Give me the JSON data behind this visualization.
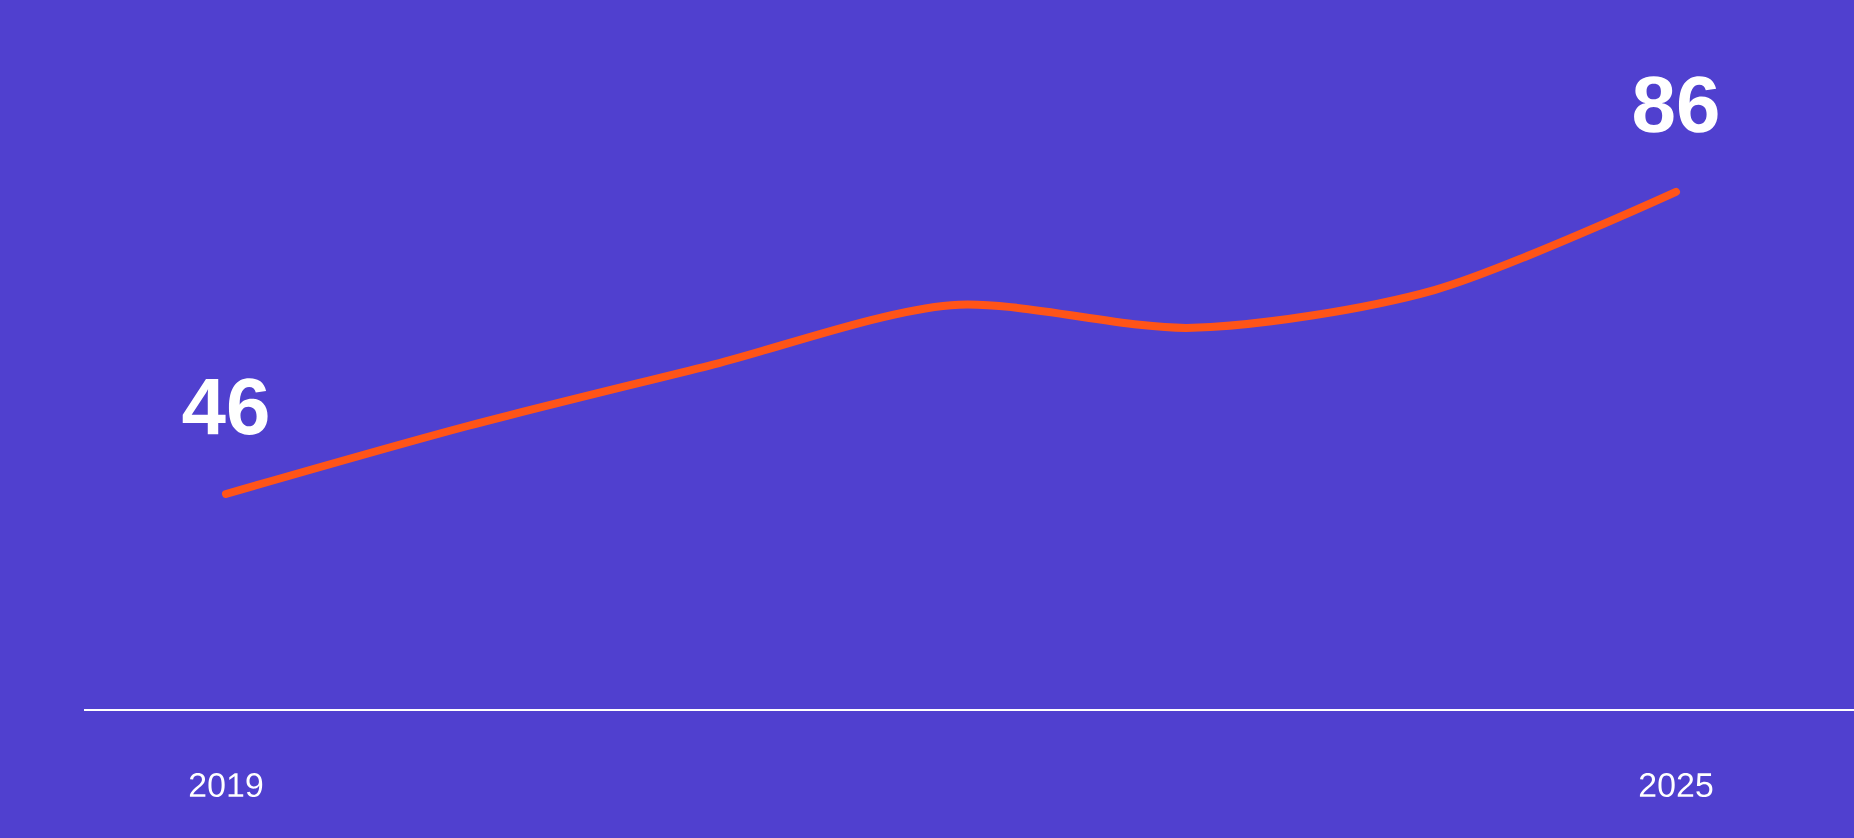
{
  "chart_data": {
    "type": "line",
    "categories": [
      "2019",
      null,
      null,
      null,
      null,
      null,
      "2025"
    ],
    "series": [
      {
        "color": "#ff5418",
        "values": [
          46,
          55,
          63,
          71,
          68,
          73,
          86
        ],
        "value_labels": [
          "46",
          null,
          null,
          null,
          null,
          null,
          "86"
        ]
      }
    ],
    "marker": "none",
    "line_style": "solid",
    "grid": false
  }
}
